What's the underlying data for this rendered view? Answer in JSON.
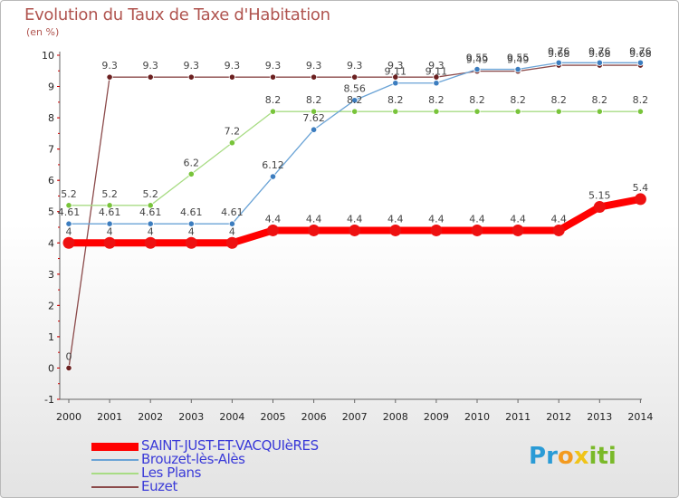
{
  "title": "Evolution du Taux de Taxe d'Habitation",
  "subtitle": "(en %)",
  "logo": {
    "letters": [
      "P",
      "r",
      "o",
      "x",
      "i",
      "t",
      "i"
    ],
    "colors": [
      "#2a9bd6",
      "#2a9bd6",
      "#f39a1f",
      "#f0c419",
      "#7ab929",
      "#7ab929",
      "#7ab929"
    ]
  },
  "chart_data": {
    "type": "line",
    "title": "Evolution du Taux de Taxe d'Habitation",
    "ylabel": "(en %)",
    "xlabel": "",
    "x": [
      2000,
      2001,
      2002,
      2003,
      2004,
      2005,
      2006,
      2007,
      2008,
      2009,
      2010,
      2011,
      2012,
      2013,
      2014
    ],
    "ylim": [
      -1,
      10
    ],
    "yticks": [
      -1,
      0,
      1,
      2,
      3,
      4,
      5,
      6,
      7,
      8,
      9,
      10
    ],
    "grid": false,
    "legend_position": "bottom-left",
    "series": [
      {
        "name": "SAINT-JUST-ET-VACQUIèRES",
        "color": "#ff0000",
        "marker_color": "#ee1111",
        "width": 8,
        "values": [
          4,
          4,
          4,
          4,
          4,
          4.4,
          4.4,
          4.4,
          4.4,
          4.4,
          4.4,
          4.4,
          4.4,
          5.15,
          5.4
        ],
        "labels": [
          "4",
          "4",
          "4",
          "4",
          "4",
          "4.4",
          "4.4",
          "4.4",
          "4.4",
          "4.4",
          "4.4",
          "4.4",
          "4.4",
          "5.15",
          "5.4"
        ]
      },
      {
        "name": "Brouzet-lès-Alès",
        "color": "#6aa3d6",
        "marker_color": "#3c7dbf",
        "width": 1.3,
        "values": [
          4.61,
          4.61,
          4.61,
          4.61,
          4.61,
          6.12,
          7.62,
          8.56,
          9.11,
          9.11,
          9.55,
          9.55,
          9.76,
          9.76,
          9.76
        ],
        "labels": [
          "4.61",
          "4.61",
          "4.61",
          "4.61",
          "4.61",
          "6.12",
          "7.62",
          "8.56",
          "9.11",
          "9.11",
          "9.55",
          "9.55",
          "9.76",
          "9.76",
          "9.76"
        ]
      },
      {
        "name": "Les Plans",
        "color": "#a8dc84",
        "marker_color": "#78c43a",
        "width": 1.3,
        "values": [
          5.2,
          5.2,
          5.2,
          6.2,
          7.2,
          8.2,
          8.2,
          8.2,
          8.2,
          8.2,
          8.2,
          8.2,
          8.2,
          8.2,
          8.2
        ],
        "labels": [
          "5.2",
          "5.2",
          "5.2",
          "6.2",
          "7.2",
          "8.2",
          "8.2",
          "8.2",
          "8.2",
          "8.2",
          "8.2",
          "8.2",
          "8.2",
          "8.2",
          "8.2"
        ]
      },
      {
        "name": "Euzet",
        "color": "#8b4a4a",
        "marker_color": "#6b2020",
        "width": 1.3,
        "values": [
          0,
          9.3,
          9.3,
          9.3,
          9.3,
          9.3,
          9.3,
          9.3,
          9.3,
          9.3,
          9.49,
          9.49,
          9.68,
          9.68,
          9.68
        ],
        "labels": [
          "0",
          "9.3",
          "9.3",
          "9.3",
          "9.3",
          "9.3",
          "9.3",
          "9.3",
          "9.3",
          "9.3",
          "9.49",
          "9.49",
          "9.68",
          "9.68",
          "9.68"
        ]
      }
    ]
  }
}
